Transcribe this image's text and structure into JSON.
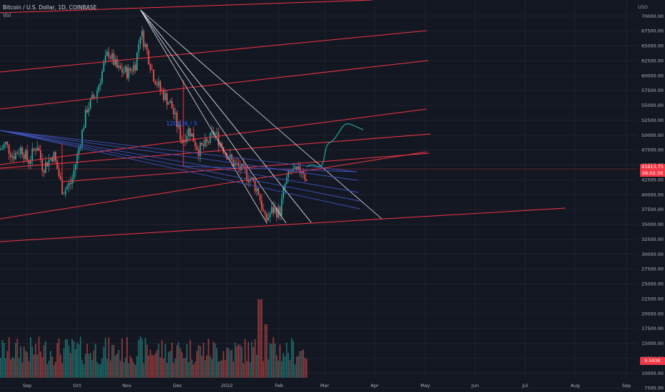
{
  "header": {
    "symbol_line": "Bitcoin / U.S. Dollar, 1D, COINBASE",
    "vol_label": "Vol",
    "price_unit": "USD"
  },
  "price_tag": {
    "price": "41913.75",
    "countdown": "06:02:39"
  },
  "volume_tag": "9.593K",
  "drawing_label": "120136 / 5",
  "colors": {
    "background": "#131722",
    "up": "#26a69a",
    "down": "#ef5350",
    "trendline_red": "#f23645",
    "fan_white": "#e0e3eb",
    "fan_blue": "#3f51b5",
    "projection": "#26a69a",
    "grid": "#1e222d"
  },
  "chart_data": {
    "type": "candlestick",
    "title": "Bitcoin / U.S. Dollar, 1D, COINBASE",
    "y_axis": {
      "range": [
        7500,
        70000
      ],
      "ticks": [
        "70000.00",
        "67500.00",
        "65000.00",
        "62500.00",
        "60000.00",
        "57500.00",
        "55000.00",
        "52500.00",
        "50000.00",
        "47500.00",
        "45000.00",
        "42500.00",
        "40000.00",
        "37500.00",
        "35000.00",
        "32500.00",
        "30000.00",
        "27500.00",
        "25000.00",
        "22500.00",
        "20000.00",
        "17500.00",
        "15000.00",
        "12500.00",
        "10000.00",
        "7500.00"
      ]
    },
    "x_axis": {
      "ticks": [
        "Sep",
        "Oct",
        "Nov",
        "Dec",
        "2022",
        "Feb",
        "Mar",
        "Apr",
        "May",
        "Jun",
        "Jul",
        "Aug",
        "Sep"
      ]
    },
    "key_points": [
      {
        "date": "2021-09-07",
        "close": 46800
      },
      {
        "date": "2021-09-21",
        "close": 40600
      },
      {
        "date": "2021-10-20",
        "close": 64300
      },
      {
        "date": "2021-11-10",
        "close": 67500
      },
      {
        "date": "2021-12-04",
        "close": 47000
      },
      {
        "date": "2022-01-24",
        "close": 33000
      },
      {
        "date": "2022-02-10",
        "close": 45000
      },
      {
        "date": "2022-02-18",
        "close": 41913.75
      }
    ],
    "last_price": 41913.75,
    "last_volume": "9.593K"
  }
}
